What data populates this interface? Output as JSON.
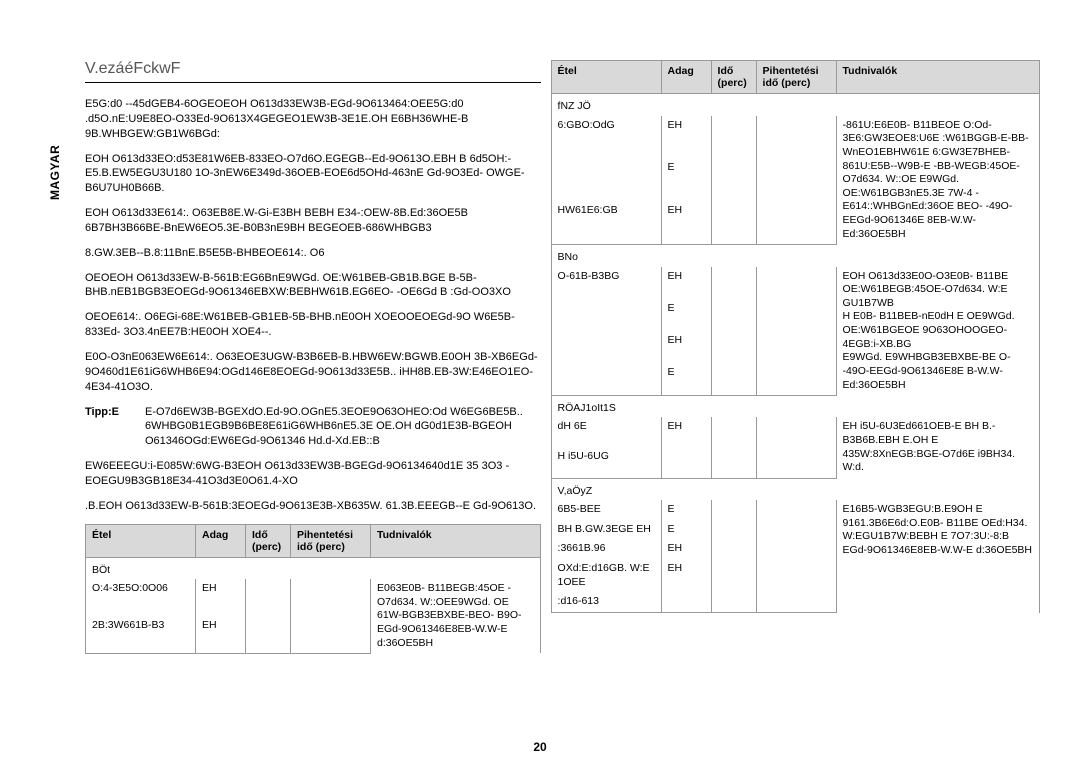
{
  "sidebarLabel": "MAGYAR",
  "heading": "V.ezáéFckwF",
  "paragraphs": [
    "E5G:d0 --45dGEB4-6OGEOEOH O613d33EW3B-EGd-9O613464:OEE5G:d0 .d5O.nE:U9E8EO-O33Ed-9O613X4GEGEO1EW3B-3E1E.OH E6BH36WHE-B 9B.WHBGEW:GB1W6BGd:",
    "EOH O613d33EO:d53E81W6EB-833EO-O7d6O.EGEGB--Ed-9O613O.EBH B 6d5OH:-E5.B.EW5EGU3U180 1O-3nEW6E349d-36OEB-EOE6d5OHd-463nE Gd-9O3Ed- OWGE-B6U7UH0B66B.",
    "EOH O613d33E614:. O63EB8E.W-Gi-E3BH BEBH E34-:OEW-8B.Ed:36OE5B 6B7BH3B66BE-BnEW6EO5.3E-B0B3nE9BH BEGEOEB-686WHBGB3",
    "8.GW.3EB--B.8:11BnE.B5E5B-BHBEOE614:. O6",
    "OEOEOH O613d33EW-B-561B:EG6BnE9WGd. OE:W61BEB-GB1B.BGE B-5B-BHB.nEB1BGB3EOEGd-9O61346EBXW:BEBHW61B.EG6EO- -OE6Gd B :Gd-OO3XO",
    "OEOE614:. O6EGi-68E:W61BEB-GB1EB-5B-BHB.nE0OH XOEOOEOEGd-9O W6E5B-833Ed- 3O3.4nEE7B:HE0OH XOE4--.",
    "E0O-O3nE063EW6E614:. O63EOE3UGW-B3B6EB-B.HBW6EW:BGWB.E0OH 3B-XB6EGd-9O460d1E61iG6WHB6E94:OGd146E8EOEGd-9O613d33E5B.. iHH8B.EB-3W:E46EO1EO-4E34-41O3O."
  ],
  "tipLabel": "Tipp:E",
  "tipText": "E-O7d6EW3B-BGEXdO.Ed-9O.OGnE5.3EOE9O63OHEO:Od W6EG6BE5B.. 6WHBG0B1EGB9B6BE8E61iG6WHB6nE5.3E OE.OH dG0d1E3B-BGEOH O61346OGd:EW6EGd-9O61346 Hd.d-Xd.EB::B",
  "trailingParas": [
    "EW6EEEGU:i-E085W:6WG-B3EOH O613d33EW3B-BGEGd-9O6134640d1E 35 3O3 -EOEGU9B3GB18E34-41O3d3E0O61.4-XO",
    ".B.EOH O613d33EW-B-561B:3EOEGd-9O613E3B-XB635W. 61.3B.EEEGB--E Gd-9O613O."
  ],
  "tableHeaders": {
    "etel": "Étel",
    "adag": "Adag",
    "ido": "Idő (perc)",
    "pihent": "Pihentetési idő (perc)",
    "tudn": "Tudnivalók"
  },
  "leftTable": {
    "sections": [
      {
        "title": "BÖt",
        "rows": [
          {
            "c1": "O:4-3E5O:0O06",
            "c2": "EH",
            "c3": "",
            "c4": "",
            "c5": "E063E0B- B11BEGB:45OE -O7d634. W::OEE9WGd. OE 61W-BGB3EBXBE-BEO- B9O-EGd-9O61346E8EB-W.W-E d:36OE5BH"
          },
          {
            "c1": "2B:3W661B-B3",
            "c2": "EH",
            "c3": "",
            "c4": "",
            "c5": ""
          }
        ]
      }
    ]
  },
  "rightTable": {
    "sections": [
      {
        "title": "fNZ JÖ",
        "rows": [
          {
            "c1": "6:GBO:OdG",
            "c2": "EH",
            "c3": "",
            "c4": "",
            "c5": "-861U:E6E0B- B11BEOE O:Od-3E6:GW3EOE8:U6E :W61BGGB-E-BB-WnEO1EBHW61E 6:GW3E7BHEB-861U:E5B--W9B-E -BB-WEGB:45OE-O7d634. W::OE E9WGd. OE:W61BGB3nE5.3E 7W-4 -E614::WHBGnEd:36OE BEO- -49O-EEGd-9O61346E 8EB-W.W-Ed:36OE5BH"
          },
          {
            "c1": "",
            "c2": "E",
            "c3": "",
            "c4": "",
            "c5": ""
          },
          {
            "c1": "HW61E6:GB",
            "c2": "EH",
            "c3": "",
            "c4": "",
            "c5": ""
          }
        ]
      },
      {
        "title": "BNo",
        "rows": [
          {
            "c1": "O-61B-B3BG",
            "c2": "EH",
            "c3": "",
            "c4": "",
            "c5": "EOH O613d33E0O-O3E0B- B11BE OE:W61BEGB:45OE-O7d634. W:E GU1B7WB"
          },
          {
            "c1": "",
            "c2": "E",
            "c3": "",
            "c4": "",
            "c5": "H E0B- B11BEB-nE0dH E OE9WGd. OE:W61BGEOE 9O63OHOOGEO-4EGB:i-XB.BG"
          },
          {
            "c1": "",
            "c2": "EH",
            "c3": "",
            "c4": "",
            "c5": ""
          },
          {
            "c1": "",
            "c2": "E",
            "c3": "",
            "c4": "",
            "c5": "E9WGd. E9WHBGB3EBXBE-BE O- -49O-EEGd-9O61346E8E B-W.W-Ed:36OE5BH"
          }
        ]
      },
      {
        "title": "RÖAJ1oIt1S",
        "rows": [
          {
            "c1": "dH 6E",
            "c2": "EH",
            "c3": "",
            "c4": "",
            "c5": "EH i5U-6U3Ed661OEB-E BH B.-B3B6B.EBH E.OH E 435W:8XnEGB:BGE-O7d6E i9BH34. W:d."
          },
          {
            "c1": "H i5U-6UG",
            "c2": "",
            "c3": "",
            "c4": "",
            "c5": ""
          }
        ]
      },
      {
        "title": "V,aÖyZ",
        "rows": [
          {
            "c1": "6B5-BEE",
            "c2": "E",
            "c3": "",
            "c4": "",
            "c5": "E16B5-WGB3EGU:B.E9OH E 9161.3B6E6d:O.E0B- B11BE OEd:H34. W:EGU1B7W:BEBH E 7O7:3U:-8:B"
          },
          {
            "c1": "BH B.GW.3EGE EH",
            "c2": "E",
            "c3": "",
            "c4": "",
            "c5": ""
          },
          {
            "c1": ":3661B.96",
            "c2": "EH",
            "c3": "",
            "c4": "",
            "c5": "EGd-9O61346E8EB-W.W-E d:36OE5BH"
          },
          {
            "c1": "OXd:E:d16GB. W:E 1OEE",
            "c2": "EH",
            "c3": "",
            "c4": "",
            "c5": ""
          },
          {
            "c1": ":d16-613",
            "c2": "",
            "c3": "",
            "c4": "",
            "c5": ""
          }
        ]
      }
    ]
  },
  "pageNum": "20"
}
